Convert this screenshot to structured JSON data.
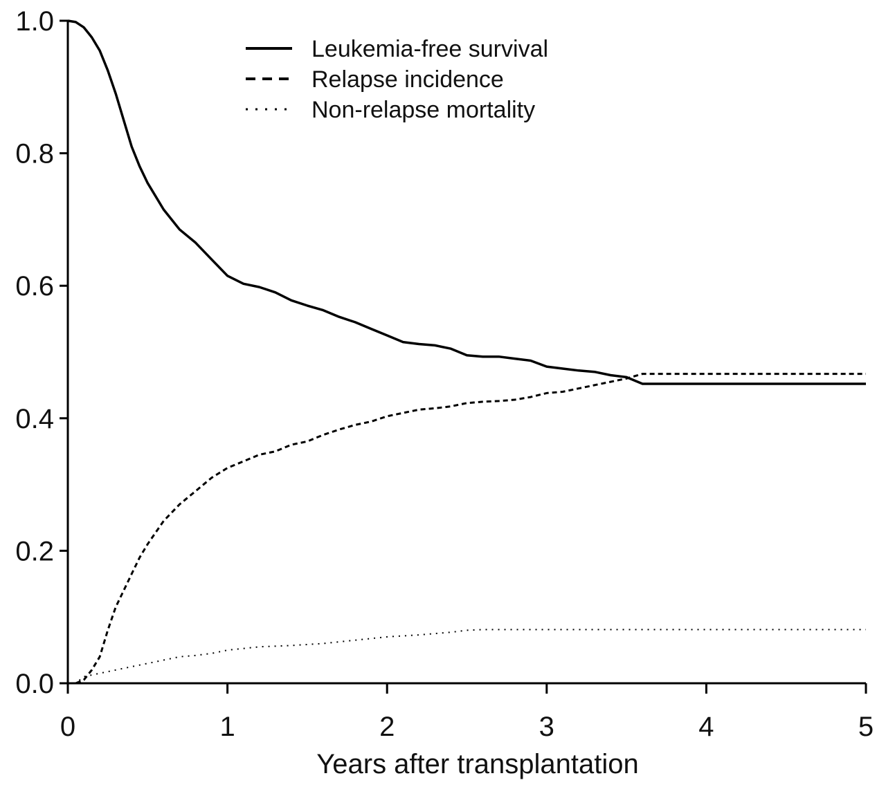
{
  "chart_data": {
    "type": "line",
    "title": "",
    "xlabel": "Years after transplantation",
    "ylabel": "",
    "xlim": [
      0,
      5
    ],
    "ylim": [
      0,
      1.0
    ],
    "x_ticks": [
      0,
      1,
      2,
      3,
      4,
      5
    ],
    "x_tick_labels": [
      "0",
      "1",
      "2",
      "3",
      "4",
      "5"
    ],
    "y_ticks": [
      0,
      0.2,
      0.4,
      0.6,
      0.8,
      1.0
    ],
    "y_tick_labels": [
      "0.0",
      "0.2",
      "0.4",
      "0.6",
      "0.8",
      "1.0"
    ],
    "grid": false,
    "legend_position": "top-center",
    "series": [
      {
        "name": "Leukemia-free survival",
        "style": "solid",
        "color": "#000000",
        "x": [
          0,
          0.05,
          0.1,
          0.15,
          0.2,
          0.25,
          0.3,
          0.35,
          0.4,
          0.45,
          0.5,
          0.6,
          0.7,
          0.8,
          0.9,
          1.0,
          1.1,
          1.2,
          1.3,
          1.4,
          1.5,
          1.6,
          1.7,
          1.8,
          1.9,
          2.0,
          2.1,
          2.2,
          2.3,
          2.4,
          2.5,
          2.6,
          2.7,
          2.8,
          2.9,
          3.0,
          3.1,
          3.2,
          3.3,
          3.4,
          3.5,
          3.6,
          3.7,
          4.0,
          4.5,
          5.0
        ],
        "values": [
          1.0,
          0.998,
          0.99,
          0.975,
          0.955,
          0.925,
          0.89,
          0.85,
          0.81,
          0.78,
          0.755,
          0.715,
          0.685,
          0.665,
          0.64,
          0.615,
          0.603,
          0.598,
          0.59,
          0.578,
          0.57,
          0.563,
          0.553,
          0.545,
          0.535,
          0.525,
          0.515,
          0.512,
          0.51,
          0.505,
          0.495,
          0.493,
          0.493,
          0.49,
          0.487,
          0.478,
          0.475,
          0.472,
          0.47,
          0.465,
          0.462,
          0.452,
          0.452,
          0.452,
          0.452,
          0.452
        ]
      },
      {
        "name": "Relapse incidence",
        "style": "dashed",
        "color": "#000000",
        "x": [
          0,
          0.05,
          0.1,
          0.15,
          0.2,
          0.25,
          0.3,
          0.35,
          0.4,
          0.45,
          0.5,
          0.6,
          0.7,
          0.8,
          0.9,
          1.0,
          1.1,
          1.2,
          1.3,
          1.4,
          1.5,
          1.6,
          1.7,
          1.8,
          1.9,
          2.0,
          2.1,
          2.2,
          2.3,
          2.4,
          2.5,
          2.6,
          2.7,
          2.8,
          2.9,
          3.0,
          3.1,
          3.2,
          3.3,
          3.4,
          3.5,
          3.6,
          3.7,
          4.0,
          4.5,
          5.0
        ],
        "values": [
          0.0,
          0.0,
          0.005,
          0.02,
          0.04,
          0.08,
          0.115,
          0.14,
          0.165,
          0.19,
          0.21,
          0.245,
          0.27,
          0.29,
          0.31,
          0.325,
          0.335,
          0.345,
          0.35,
          0.36,
          0.365,
          0.375,
          0.383,
          0.39,
          0.395,
          0.403,
          0.408,
          0.413,
          0.415,
          0.418,
          0.423,
          0.425,
          0.426,
          0.428,
          0.432,
          0.438,
          0.44,
          0.445,
          0.45,
          0.455,
          0.46,
          0.467,
          0.467,
          0.467,
          0.467,
          0.467
        ]
      },
      {
        "name": "Non-relapse mortality",
        "style": "dotted",
        "color": "#000000",
        "x": [
          0,
          0.05,
          0.1,
          0.2,
          0.3,
          0.4,
          0.5,
          0.6,
          0.7,
          0.8,
          0.9,
          1.0,
          1.2,
          1.4,
          1.6,
          1.8,
          2.0,
          2.2,
          2.4,
          2.5,
          2.6,
          3.0,
          3.5,
          4.0,
          4.5,
          5.0
        ],
        "values": [
          0.0,
          0.0,
          0.01,
          0.015,
          0.02,
          0.025,
          0.03,
          0.035,
          0.04,
          0.042,
          0.045,
          0.05,
          0.055,
          0.057,
          0.06,
          0.065,
          0.07,
          0.073,
          0.077,
          0.08,
          0.081,
          0.081,
          0.081,
          0.081,
          0.081,
          0.081
        ]
      }
    ]
  }
}
